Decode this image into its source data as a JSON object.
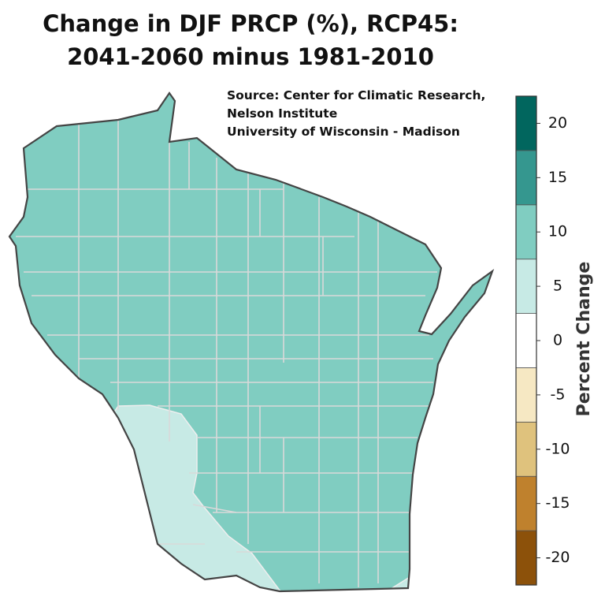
{
  "title": [
    "Change in DJF PRCP (%), RCP45:",
    "2041-2060 minus 1981-2010"
  ],
  "source": [
    "Source:  Center for Climatic Research,",
    "Nelson Institute",
    "University of Wisconsin - Madison"
  ],
  "legend": {
    "label": "Percent Change",
    "ticks": [
      20,
      15,
      10,
      5,
      0,
      -5,
      -10,
      -15,
      -20
    ],
    "bins": [
      -22.5,
      -17.5,
      -12.5,
      -7.5,
      -2.5,
      2.5,
      7.5,
      12.5,
      17.5,
      22.5
    ],
    "colors": [
      "#8c510a",
      "#bf812d",
      "#dfc27d",
      "#f6e8c3",
      "#ffffff",
      "#c7eae5",
      "#80cdc1",
      "#35978f",
      "#01665e"
    ]
  },
  "regions": [
    {
      "value": 10
    },
    {
      "value": 5
    }
  ]
}
